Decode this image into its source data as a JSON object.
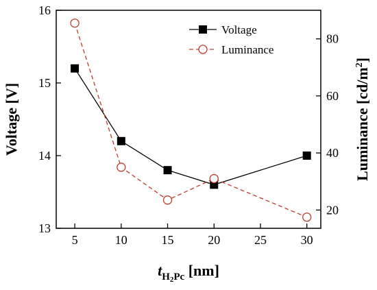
{
  "chart_data": {
    "type": "line",
    "x": [
      5,
      10,
      15,
      20,
      30
    ],
    "xlabel": {
      "italic": "t",
      "sub": "H",
      "sub2": "2",
      "sub3": "Pc",
      "unit": " [nm]"
    },
    "xlim": [
      3,
      31.5
    ],
    "xticks": [
      5,
      10,
      15,
      20,
      25,
      30
    ],
    "xtick_labels": [
      "5",
      "10",
      "15",
      "20",
      "25",
      "30"
    ],
    "y_left": {
      "label": "Voltage [V]",
      "ylim": [
        13,
        16
      ],
      "ticks": [
        13,
        14,
        15,
        16
      ],
      "tick_labels": [
        "13",
        "14",
        "15",
        "16"
      ]
    },
    "y_right": {
      "label": "Luminance [cd/m",
      "label_sup": "2",
      "label_close": "]",
      "ylim": [
        13.6,
        90
      ],
      "ticks": [
        20,
        40,
        60,
        80
      ],
      "tick_labels": [
        "20",
        "40",
        "60",
        "80"
      ]
    },
    "series": [
      {
        "name": "Voltage",
        "axis": "left",
        "values": [
          15.2,
          14.2,
          13.8,
          13.6,
          14.0
        ],
        "color": "#000000",
        "line_style": "solid",
        "marker": "filled-square"
      },
      {
        "name": "Luminance",
        "axis": "right",
        "values": [
          85.5,
          35.0,
          23.5,
          31.0,
          17.5
        ],
        "color": "#c0392b",
        "line_style": "dashed",
        "marker": "open-circle"
      }
    ],
    "legend_position": "top-right",
    "grid": false
  }
}
